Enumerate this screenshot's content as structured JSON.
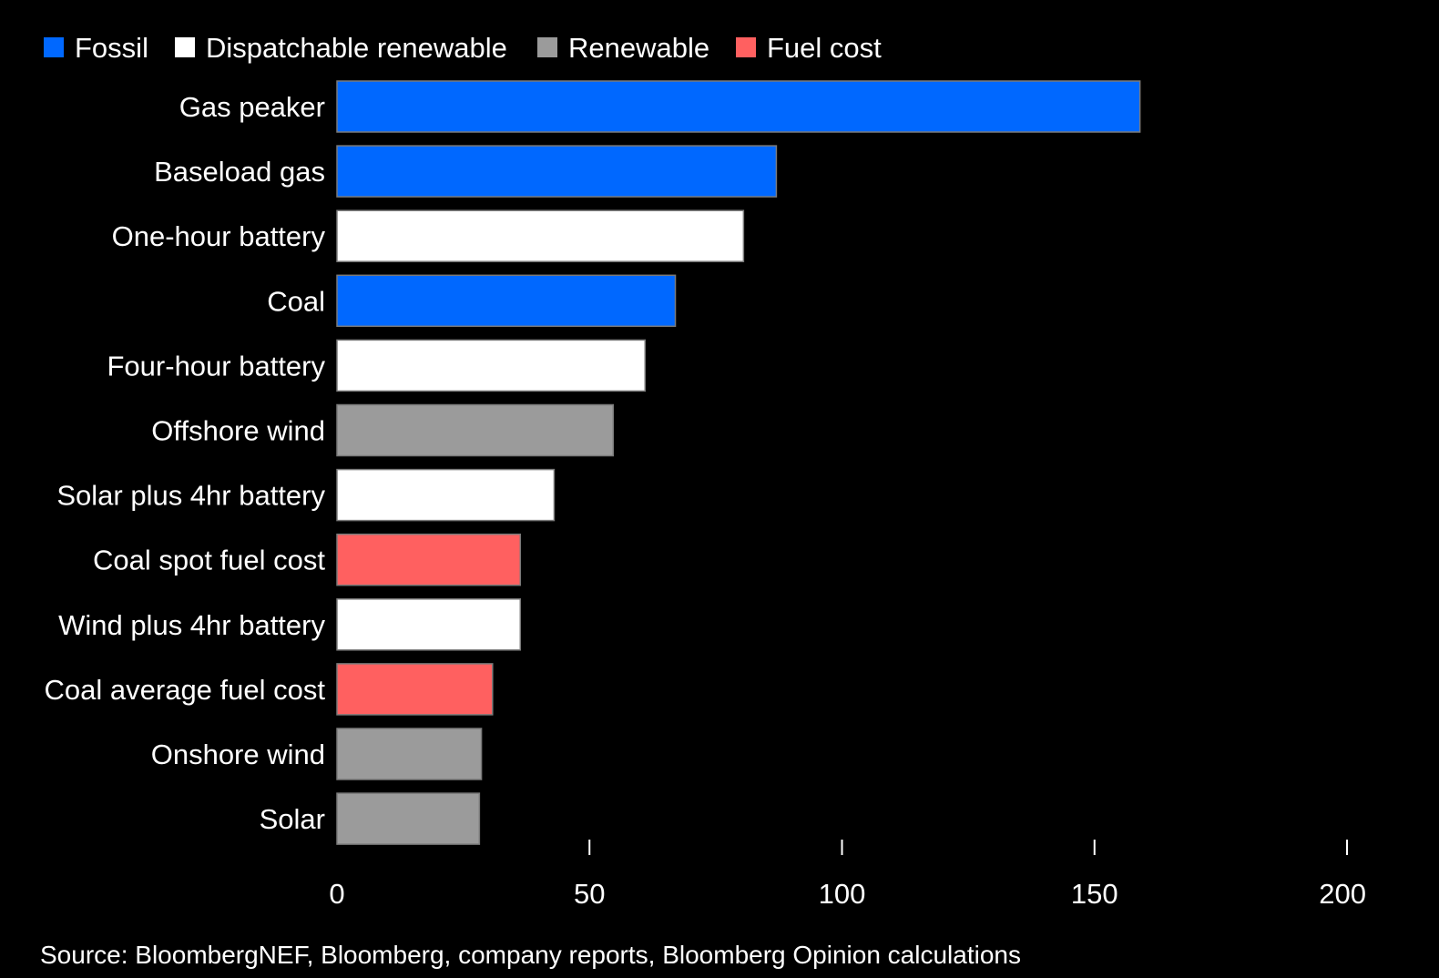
{
  "chart_data": {
    "type": "bar",
    "orientation": "horizontal",
    "title": "",
    "xlabel": "",
    "ylabel": "",
    "xlim": [
      0,
      200
    ],
    "x_ticks": [
      0,
      50,
      100,
      150,
      200
    ],
    "grid": false,
    "legend_position": "top-left",
    "legend": [
      {
        "key": "fossil",
        "label": "Fossil",
        "color": "#0068ff"
      },
      {
        "key": "dispatchable",
        "label": "Dispatchable renewable",
        "color": "#ffffff"
      },
      {
        "key": "renewable",
        "label": "Renewable",
        "color": "#9b9b9b"
      },
      {
        "key": "fuel",
        "label": "Fuel cost",
        "color": "#ff6060"
      }
    ],
    "bars": [
      {
        "category": "Gas peaker",
        "value": 159,
        "group": "fossil"
      },
      {
        "category": "Baseload gas",
        "value": 87,
        "group": "fossil"
      },
      {
        "category": "One-hour battery",
        "value": 80.5,
        "group": "dispatchable"
      },
      {
        "category": "Coal",
        "value": 67,
        "group": "fossil"
      },
      {
        "category": "Four-hour battery",
        "value": 61,
        "group": "dispatchable"
      },
      {
        "category": "Offshore wind",
        "value": 54.7,
        "group": "renewable"
      },
      {
        "category": "Solar plus 4hr battery",
        "value": 43,
        "group": "dispatchable"
      },
      {
        "category": "Coal spot fuel cost",
        "value": 36.3,
        "group": "fuel"
      },
      {
        "category": "Wind plus 4hr battery",
        "value": 36.3,
        "group": "dispatchable"
      },
      {
        "category": "Coal average fuel cost",
        "value": 30.8,
        "group": "fuel"
      },
      {
        "category": "Onshore wind",
        "value": 28.6,
        "group": "renewable"
      },
      {
        "category": "Solar",
        "value": 28.2,
        "group": "renewable"
      }
    ]
  },
  "source": "Source: BloombergNEF, Bloomberg, company reports, Bloomberg Opinion calculations"
}
